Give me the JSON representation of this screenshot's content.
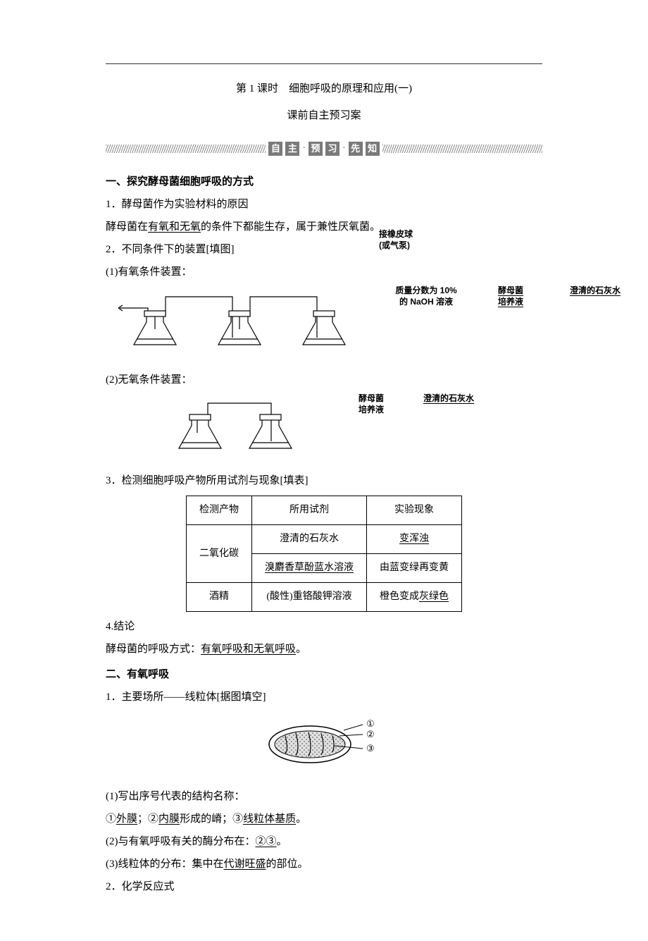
{
  "page": {
    "title": "第 1 课时　细胞呼吸的原理和应用(一)",
    "subtitle": "课前自主预习案",
    "banner": {
      "chars": [
        "自",
        "主",
        "预",
        "习",
        "先",
        "知"
      ],
      "dotPositions": [
        2,
        4
      ]
    },
    "section1": {
      "heading": "一、探究酵母菌细胞呼吸的方式",
      "p1_num": "1．酵母菌作为实验材料的原因",
      "p1_text_pre": "酵母菌在",
      "p1_underline": "有氧和无氧",
      "p1_text_post": "的条件下都能生存，属于兼性厌氧菌。",
      "p2": "2．不同条件下的装置[填图]",
      "p2a": "(1)有氧条件装置：",
      "p2b": "(2)无氧条件装置：",
      "diagram1": {
        "pump": "接橡皮球\n(或气泵)",
        "flask1_l1": "质量分数为 10%",
        "flask1_l2": "的 NaOH 溶液",
        "flask2_l1": "酵母菌",
        "flask2_l2": "培养液",
        "flask3": "澄清的石灰水"
      },
      "diagram2": {
        "flask1_l1": "酵母菌",
        "flask1_l2": "培养液",
        "flask2": "澄清的石灰水"
      },
      "p3": "3．检测细胞呼吸产物所用试剂与现象[填表]",
      "table": {
        "headers": [
          "检测产物",
          "所用试剂",
          "实验现象"
        ],
        "rows": [
          {
            "product": "二氧化碳",
            "reagent": "澄清的石灰水",
            "phenom_pre": "",
            "phenom_u": "变浑浊",
            "phenom_post": "",
            "reagent_u": false,
            "rowspan": 2
          },
          {
            "product": "",
            "reagent": "溴麝香草酚蓝水溶液",
            "phenom_pre": "由蓝变绿再变黄",
            "phenom_u": "",
            "phenom_post": "",
            "reagent_u": true
          },
          {
            "product": "酒精",
            "reagent": "(酸性)重铬酸钾溶液",
            "phenom_pre": "橙色变成",
            "phenom_u": "灰绿色",
            "phenom_post": "",
            "reagent_u": false
          }
        ]
      },
      "p4": "4.结论",
      "p4_text_pre": "酵母菌的呼吸方式：",
      "p4_underline": "有氧呼吸和无氧呼吸",
      "p4_text_post": "。"
    },
    "section2": {
      "heading": "二、有氧呼吸",
      "p1": "1．主要场所——线粒体[据图填空]",
      "mito_labels": {
        "n1": "①",
        "n2": "②",
        "n3": "③"
      },
      "q1_pre": "(1)写出序号代表的结构名称：",
      "q1_ans": {
        "a1_pre": "①",
        "a1": "外膜",
        "a1_post": "；②",
        "a2": "内膜",
        "a2_post": "形成的嵴；③",
        "a3": "线粒体基质",
        "a3_post": "。"
      },
      "q2_pre": "(2)与有氧呼吸有关的酶分布在：",
      "q2_u": "②③",
      "q2_post": "。",
      "q3_pre": "(3)线粒体的分布：集中在",
      "q3_u": "代谢旺盛",
      "q3_post": "的部位。",
      "p2": "2．化学反应式"
    },
    "colors": {
      "text": "#000000",
      "bg": "#ffffff",
      "bannerBox": "#7a7a7a",
      "hatch": "#888888",
      "stroke": "#000000"
    }
  }
}
